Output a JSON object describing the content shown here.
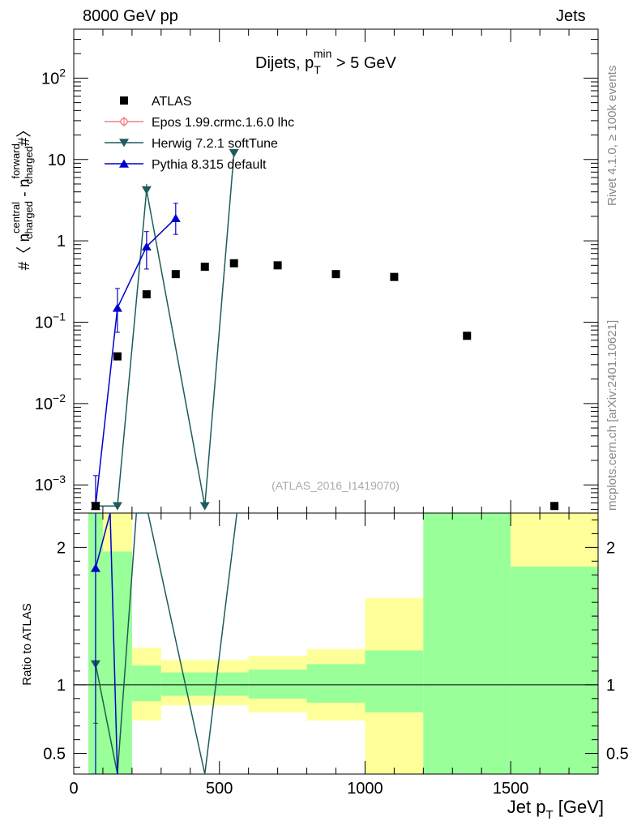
{
  "header": {
    "left": "8000 GeV pp",
    "right": "Jets"
  },
  "side_labels": {
    "rivet": "Rivet 4.1.0, ≥ 100k events",
    "mcplots": "mcplots.cern.ch [arXiv:2401.10621]"
  },
  "chart_data": {
    "type": "scatter",
    "title_main": "Dijets, p",
    "title_sub": "T",
    "title_sup": "min",
    "title_tail": " > 5 GeV",
    "watermark": "(ATLAS_2016_I1419070)",
    "xlabel_main": "Jet p",
    "xlabel_sub": "T",
    "xlabel_tail": " [GeV]",
    "ylabel_pieces": [
      "#〈 n",
      "central",
      "charged",
      " - n",
      "forward",
      "charged",
      "#〉"
    ],
    "ratio_ylabel": "Ratio to ATLAS",
    "xlim": [
      0,
      1800
    ],
    "ylim_log": [
      0.00045,
      400
    ],
    "ratio_ylim": [
      0.35,
      2.25
    ],
    "x_ticks": [
      {
        "v": 0,
        "label": "0"
      },
      {
        "v": 500,
        "label": "500"
      },
      {
        "v": 1000,
        "label": "1000"
      },
      {
        "v": 1500,
        "label": "1500"
      }
    ],
    "y_ticks": [
      {
        "v": 0.001,
        "base": "10",
        "exp": "−3"
      },
      {
        "v": 0.01,
        "base": "10",
        "exp": "−2"
      },
      {
        "v": 0.1,
        "base": "10",
        "exp": "−1"
      },
      {
        "v": 1,
        "base": "1",
        "exp": ""
      },
      {
        "v": 10,
        "base": "10",
        "exp": ""
      },
      {
        "v": 100,
        "base": "10",
        "exp": "2"
      }
    ],
    "ratio_ticks": [
      {
        "v": 0.5,
        "label": "0.5"
      },
      {
        "v": 1,
        "label": "1"
      },
      {
        "v": 2,
        "label": "2"
      }
    ],
    "legend": [
      {
        "label": "ATLAS",
        "color": "#000000",
        "marker": "square"
      },
      {
        "label": "Epos 1.99.crmc.1.6.0 lhc",
        "color": "#f08080",
        "marker": "cross"
      },
      {
        "label": "Herwig 7.2.1 softTune",
        "color": "#1f5b5b",
        "marker": "triangle-down"
      },
      {
        "label": "Pythia 8.315 default",
        "color": "#0000cc",
        "marker": "triangle-up"
      }
    ],
    "atlas": {
      "name": "ATLAS",
      "x": [
        75,
        150,
        250,
        350,
        450,
        550,
        700,
        900,
        1100,
        1350,
        1650
      ],
      "values": [
        0.00055,
        0.038,
        0.22,
        0.39,
        0.48,
        0.53,
        0.5,
        0.39,
        0.36,
        0.068,
        0.00055
      ]
    },
    "herwig": {
      "name": "Herwig 7.2.1 softTune",
      "color": "#1f5b5b",
      "x": [
        75,
        150,
        250,
        450,
        550
      ],
      "values": [
        0.00055,
        0.00055,
        4.2,
        0.00055,
        12
      ],
      "err_low": [
        0.00055,
        0,
        3.7,
        0,
        0
      ],
      "err_high": [
        0.00055,
        0,
        5.0,
        0,
        0
      ]
    },
    "pythia": {
      "name": "Pythia 8.315 default",
      "color": "#0000cc",
      "x": [
        75,
        150,
        250,
        350
      ],
      "values": [
        0.00055,
        0.15,
        0.85,
        1.9
      ],
      "err_low": [
        0.00055,
        0.075,
        0.45,
        1.2
      ],
      "err_high": [
        0.0013,
        0.26,
        1.3,
        2.9
      ]
    },
    "bands": [
      {
        "x0": 50,
        "x1": 100,
        "g_lo": 0.3,
        "g_hi": 3,
        "y_lo": 0.3,
        "y_hi": 3
      },
      {
        "x0": 100,
        "x1": 200,
        "g_lo": 0.3,
        "g_hi": 1.97,
        "y_lo": 0.3,
        "y_hi": 3
      },
      {
        "x0": 200,
        "x1": 300,
        "g_lo": 0.88,
        "g_hi": 1.14,
        "y_lo": 0.74,
        "y_hi": 1.27
      },
      {
        "x0": 300,
        "x1": 600,
        "g_lo": 0.92,
        "g_hi": 1.09,
        "y_lo": 0.85,
        "y_hi": 1.18
      },
      {
        "x0": 600,
        "x1": 800,
        "g_lo": 0.9,
        "g_hi": 1.11,
        "y_lo": 0.8,
        "y_hi": 1.21
      },
      {
        "x0": 800,
        "x1": 1000,
        "g_lo": 0.87,
        "g_hi": 1.15,
        "y_lo": 0.74,
        "y_hi": 1.26
      },
      {
        "x0": 1000,
        "x1": 1200,
        "g_lo": 0.8,
        "g_hi": 1.25,
        "y_lo": 0.3,
        "y_hi": 1.63
      },
      {
        "x0": 1200,
        "x1": 1500,
        "g_lo": 0.3,
        "g_hi": 3,
        "y_lo": 0.3,
        "y_hi": 3
      },
      {
        "x0": 1500,
        "x1": 1800,
        "g_lo": 0.3,
        "g_hi": 1.86,
        "y_lo": 0.3,
        "y_hi": 3
      }
    ],
    "herwig_ratio": {
      "x": [
        75,
        150,
        215,
        255,
        450,
        560
      ],
      "values": [
        1.15,
        0.3,
        3,
        3,
        0.3,
        3
      ],
      "marker": [
        true,
        false,
        false,
        false,
        false,
        false
      ],
      "err_low": [
        0.72,
        0,
        0,
        0,
        0,
        0
      ],
      "err_high": [
        2.2,
        0,
        0,
        0,
        0,
        0
      ]
    },
    "pythia_ratio": {
      "x": [
        75,
        125,
        150
      ],
      "values": [
        1.85,
        3,
        0.3
      ],
      "marker": [
        true,
        false,
        false
      ],
      "err_low": [
        0.3,
        0,
        0
      ],
      "err_high": [
        2.5,
        0,
        0
      ]
    }
  }
}
